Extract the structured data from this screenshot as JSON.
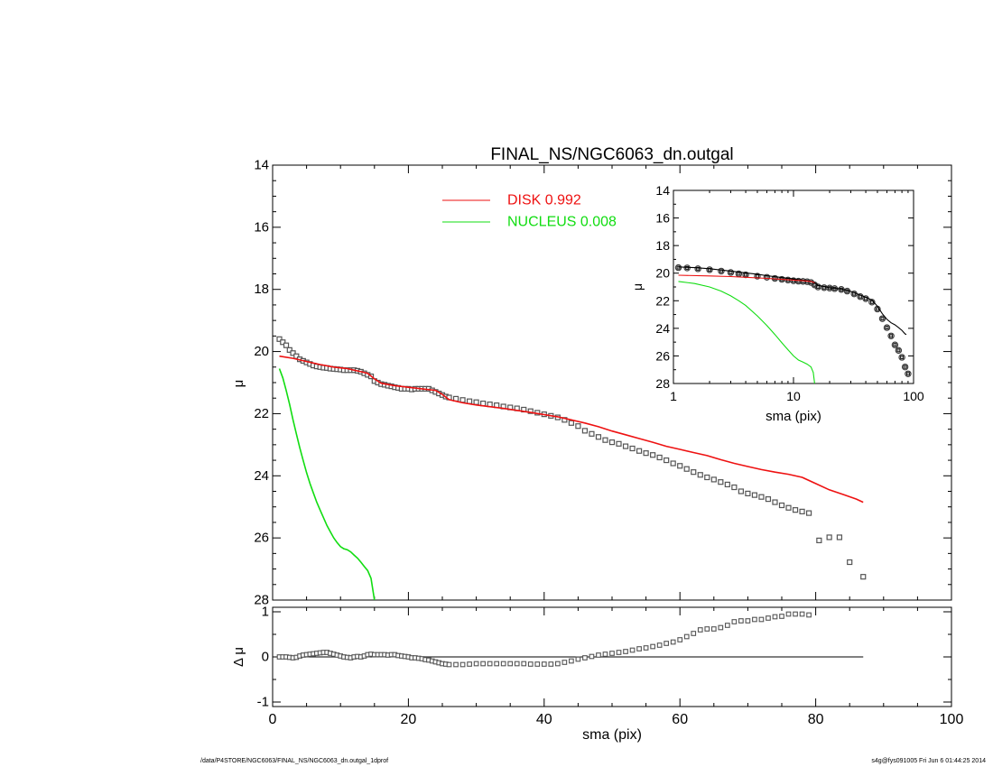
{
  "title": "FINAL_NS/NGC6063_dn.outgal",
  "footer": {
    "path": "/data/P4STORE/NGC6063/FINAL_NS/NGC6063_dn.outgal_1dprof",
    "stamp": "s4g@fys091005  Fri Jun  6 01:44:25 2014"
  },
  "colors": {
    "data": "#000000",
    "disk": "#ee1111",
    "nucleus": "#11dd11",
    "residual_line": "#000000"
  },
  "chart_data": [
    {
      "type": "line",
      "panel": "main",
      "title": "FINAL_NS/NGC6063_dn.outgal",
      "xlabel": "",
      "ylabel": "μ",
      "xlim": [
        0,
        100
      ],
      "ylim": [
        28,
        14
      ],
      "y_inverted": true,
      "yticks": [
        14,
        16,
        18,
        20,
        22,
        24,
        26,
        28
      ],
      "legend": {
        "placement": "top-center",
        "entries": [
          {
            "label": "DISK  0.992",
            "color": "#ee1111"
          },
          {
            "label": "NUCLEUS  0.008",
            "color": "#11dd11"
          }
        ]
      },
      "series": [
        {
          "name": "data",
          "style": "open-squares",
          "x": [
            1,
            1.5,
            2,
            2.5,
            3,
            3.5,
            4,
            4.5,
            5,
            5.5,
            6,
            6.5,
            7,
            7.5,
            8,
            8.5,
            9,
            9.5,
            10,
            10.5,
            11,
            11.5,
            12,
            12.5,
            13,
            13.5,
            14,
            14.5,
            15,
            15.5,
            16,
            16.5,
            17,
            17.5,
            18,
            18.5,
            19,
            19.5,
            20,
            20.5,
            21,
            21.5,
            22,
            22.5,
            23,
            23.5,
            24,
            24.5,
            25,
            25.5,
            26,
            27,
            28,
            29,
            30,
            31,
            32,
            33,
            34,
            35,
            36,
            37,
            38,
            39,
            40,
            41,
            42,
            43,
            44,
            45,
            46,
            47,
            48,
            49,
            50,
            51,
            52,
            53,
            54,
            55,
            56,
            57,
            58,
            59,
            60,
            61,
            62,
            63,
            64,
            65,
            66,
            67,
            68,
            69,
            70,
            71,
            72,
            73,
            74,
            75,
            76,
            77,
            78,
            79,
            80.5,
            82,
            83.5,
            85,
            87
          ],
          "y": [
            19.6,
            19.7,
            19.8,
            19.95,
            20.05,
            20.15,
            20.25,
            20.3,
            20.35,
            20.4,
            20.45,
            20.48,
            20.5,
            20.52,
            20.53,
            20.55,
            20.56,
            20.57,
            20.58,
            20.6,
            20.6,
            20.6,
            20.6,
            20.62,
            20.65,
            20.7,
            20.75,
            20.8,
            20.95,
            21,
            21.05,
            21.07,
            21.1,
            21.12,
            21.15,
            21.17,
            21.2,
            21.2,
            21.2,
            21.22,
            21.2,
            21.2,
            21.2,
            21.2,
            21.2,
            21.25,
            21.3,
            21.35,
            21.4,
            21.45,
            21.48,
            21.52,
            21.56,
            21.6,
            21.63,
            21.67,
            21.7,
            21.73,
            21.77,
            21.8,
            21.83,
            21.87,
            21.92,
            21.97,
            22.02,
            22.07,
            22.12,
            22.2,
            22.3,
            22.4,
            22.55,
            22.65,
            22.75,
            22.85,
            22.92,
            22.97,
            23.05,
            23.12,
            23.2,
            23.27,
            23.33,
            23.41,
            23.5,
            23.6,
            23.68,
            23.78,
            23.88,
            23.97,
            24.05,
            24.12,
            24.2,
            24.28,
            24.37,
            24.5,
            24.57,
            24.62,
            24.68,
            24.75,
            24.85,
            24.95,
            25.03,
            25.1,
            25.15,
            25.2,
            26.08,
            25.98,
            25.98,
            26.78,
            27.25
          ]
        },
        {
          "name": "DISK",
          "style": "line",
          "x": [
            1,
            3,
            5,
            7,
            9,
            11,
            12,
            13,
            14,
            15,
            16,
            18,
            20,
            22,
            24,
            25,
            26,
            28,
            30,
            34,
            38,
            42,
            44,
            46,
            48,
            50,
            52,
            54,
            56,
            58,
            60,
            62,
            64,
            66,
            68,
            70,
            72,
            74,
            76,
            78,
            80,
            82,
            84,
            86,
            87
          ],
          "y": [
            20.15,
            20.22,
            20.32,
            20.42,
            20.5,
            20.55,
            20.6,
            20.65,
            20.7,
            20.88,
            21.02,
            21.1,
            21.15,
            21.2,
            21.25,
            21.38,
            21.55,
            21.65,
            21.72,
            21.83,
            21.96,
            22.1,
            22.2,
            22.3,
            22.42,
            22.56,
            22.68,
            22.8,
            22.92,
            23.05,
            23.15,
            23.25,
            23.35,
            23.48,
            23.6,
            23.7,
            23.8,
            23.88,
            23.95,
            24.05,
            24.25,
            24.45,
            24.6,
            24.75,
            24.85
          ]
        },
        {
          "name": "NUCLEUS",
          "style": "line",
          "x": [
            1,
            1.5,
            2,
            2.5,
            3,
            3.5,
            4,
            4.5,
            5,
            5.5,
            6,
            6.5,
            7,
            7.5,
            8,
            8.5,
            9,
            9.5,
            10,
            10.5,
            11,
            11.5,
            12,
            12.5,
            13,
            13.5,
            14,
            14.5,
            15
          ],
          "y": [
            20.55,
            20.85,
            21.25,
            21.7,
            22.2,
            22.65,
            23.1,
            23.5,
            23.9,
            24.25,
            24.55,
            24.85,
            25.1,
            25.35,
            25.6,
            25.8,
            26.0,
            26.15,
            26.28,
            26.35,
            26.38,
            26.45,
            26.55,
            26.65,
            26.78,
            26.92,
            27.05,
            27.3,
            28.0
          ]
        }
      ]
    },
    {
      "type": "line",
      "panel": "inset",
      "xlabel": "sma (pix)",
      "ylabel": "μ",
      "xscale": "log",
      "xlim": [
        1,
        100
      ],
      "xticks": [
        1,
        10,
        100
      ],
      "ylim": [
        28,
        14
      ],
      "y_inverted": true,
      "yticks": [
        14,
        16,
        18,
        20,
        22,
        24,
        26,
        28
      ],
      "series": [
        {
          "name": "data",
          "style": "circles+squares",
          "x": [
            1.1,
            1.3,
            1.6,
            2,
            2.5,
            3,
            3.5,
            4,
            5,
            6,
            7,
            8,
            9,
            10,
            11,
            12,
            13,
            14,
            15,
            16,
            18,
            20,
            22,
            25,
            28,
            32,
            36,
            40,
            45,
            50,
            55,
            60,
            65,
            70,
            75,
            80,
            85,
            90
          ],
          "y": [
            19.6,
            19.62,
            19.68,
            19.75,
            19.85,
            19.95,
            20.05,
            20.12,
            20.22,
            20.3,
            20.38,
            20.45,
            20.5,
            20.55,
            20.58,
            20.6,
            20.62,
            20.68,
            20.85,
            21,
            21.05,
            21.08,
            21.12,
            21.18,
            21.3,
            21.5,
            21.7,
            21.85,
            22.1,
            22.6,
            23.3,
            23.95,
            24.55,
            25.2,
            25.6,
            26.1,
            26.8,
            27.3
          ]
        },
        {
          "name": "model",
          "style": "line",
          "x": [
            1.1,
            1.5,
            2,
            3,
            4,
            5,
            6,
            8,
            10,
            12,
            14,
            15,
            16,
            20,
            25,
            30,
            35,
            40,
            45,
            50,
            55,
            60,
            65,
            70,
            75,
            80,
            85,
            87
          ],
          "y": [
            19.55,
            19.6,
            19.68,
            19.85,
            19.98,
            20.08,
            20.18,
            20.32,
            20.42,
            20.5,
            20.58,
            20.7,
            20.88,
            21.05,
            21.15,
            21.32,
            21.55,
            21.75,
            21.95,
            22.4,
            22.95,
            23.35,
            23.6,
            23.75,
            23.95,
            24.15,
            24.4,
            24.45
          ]
        },
        {
          "name": "DISK",
          "style": "line",
          "x": [
            1.1,
            2,
            3,
            4,
            6,
            8,
            10,
            12,
            14,
            15
          ],
          "y": [
            20.15,
            20.2,
            20.25,
            20.3,
            20.38,
            20.45,
            20.5,
            20.55,
            20.6,
            20.7
          ]
        },
        {
          "name": "NUCLEUS",
          "style": "line",
          "x": [
            1.1,
            1.5,
            2,
            2.5,
            3,
            3.5,
            4,
            5,
            6,
            7,
            8,
            9,
            10,
            11,
            12,
            13,
            14,
            14.6,
            15
          ],
          "y": [
            20.6,
            20.75,
            21.0,
            21.3,
            21.65,
            22.0,
            22.35,
            23.1,
            23.8,
            24.45,
            25.05,
            25.55,
            26.0,
            26.3,
            26.45,
            26.6,
            26.8,
            27.2,
            28.0
          ]
        }
      ]
    },
    {
      "type": "scatter",
      "panel": "residual",
      "xlabel": "sma (pix)",
      "ylabel": "Δ μ",
      "xlim": [
        0,
        100
      ],
      "xticks": [
        0,
        20,
        40,
        60,
        80,
        100
      ],
      "ylim": [
        -1.1,
        1.1
      ],
      "yticks": [
        -1,
        0,
        1
      ],
      "zero_line": {
        "x": [
          1,
          87
        ],
        "y": 0
      },
      "series": [
        {
          "name": "residual",
          "style": "open-squares",
          "x": [
            1,
            1.5,
            2,
            2.5,
            3,
            3.5,
            4,
            4.5,
            5,
            5.5,
            6,
            6.5,
            7,
            7.5,
            8,
            8.5,
            9,
            9.5,
            10,
            10.5,
            11,
            11.5,
            12,
            12.5,
            13,
            13.5,
            14,
            14.5,
            15,
            15.5,
            16,
            16.5,
            17,
            17.5,
            18,
            18.5,
            19,
            19.5,
            20,
            20.5,
            21,
            21.5,
            22,
            22.5,
            23,
            23.5,
            24,
            24.5,
            25,
            25.5,
            26,
            27,
            28,
            29,
            30,
            31,
            32,
            33,
            34,
            35,
            36,
            37,
            38,
            39,
            40,
            41,
            42,
            43,
            44,
            45,
            46,
            47,
            48,
            49,
            50,
            51,
            52,
            53,
            54,
            55,
            56,
            57,
            58,
            59,
            60,
            61,
            62,
            63,
            64,
            65,
            66,
            67,
            68,
            69,
            70,
            71,
            72,
            73,
            74,
            75,
            76,
            77,
            78,
            79
          ],
          "y": [
            0,
            0,
            0,
            -0.01,
            -0.02,
            -0.01,
            0.02,
            0.04,
            0.05,
            0.06,
            0.07,
            0.08,
            0.09,
            0.1,
            0.1,
            0.08,
            0.06,
            0.04,
            0.02,
            0,
            -0.01,
            -0.02,
            0,
            0.01,
            0,
            0.02,
            0.05,
            0.06,
            0.05,
            0.05,
            0.05,
            0.05,
            0.04,
            0.05,
            0.05,
            0.03,
            0.02,
            0.01,
            0,
            -0.02,
            -0.02,
            -0.03,
            -0.04,
            -0.06,
            -0.07,
            -0.09,
            -0.11,
            -0.13,
            -0.15,
            -0.16,
            -0.17,
            -0.17,
            -0.17,
            -0.16,
            -0.15,
            -0.15,
            -0.15,
            -0.15,
            -0.15,
            -0.15,
            -0.15,
            -0.15,
            -0.16,
            -0.16,
            -0.16,
            -0.16,
            -0.15,
            -0.12,
            -0.09,
            -0.05,
            -0.02,
            0.01,
            0.04,
            0.06,
            0.08,
            0.1,
            0.12,
            0.15,
            0.18,
            0.2,
            0.23,
            0.26,
            0.3,
            0.33,
            0.38,
            0.45,
            0.52,
            0.6,
            0.62,
            0.62,
            0.65,
            0.7,
            0.78,
            0.8,
            0.8,
            0.83,
            0.83,
            0.86,
            0.89,
            0.9,
            0.95,
            0.95,
            0.95,
            0.93
          ]
        }
      ]
    }
  ]
}
